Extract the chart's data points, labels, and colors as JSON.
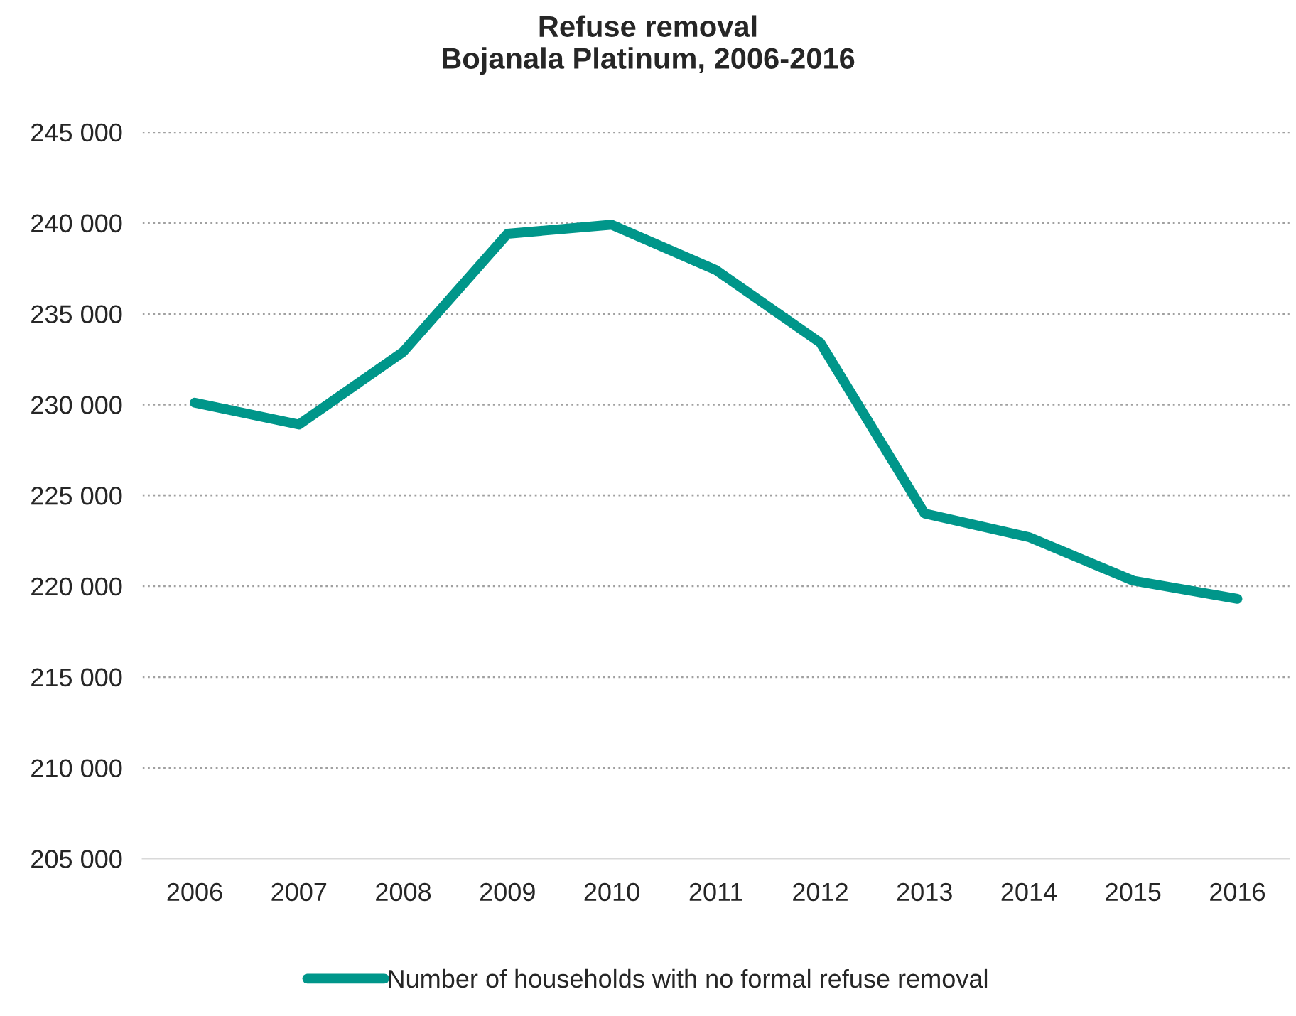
{
  "chart_data": {
    "type": "line",
    "title": "Refuse removal\nBojanala Platinum, 2006-2016",
    "categories": [
      "2006",
      "2007",
      "2008",
      "2009",
      "2010",
      "2011",
      "2012",
      "2013",
      "2014",
      "2015",
      "2016"
    ],
    "series": [
      {
        "name": "Number of households with no formal refuse removal",
        "color": "#00968a",
        "values": [
          230100,
          228900,
          232900,
          239400,
          239900,
          237400,
          233400,
          224000,
          222700,
          220300,
          219300
        ]
      }
    ],
    "ylim": [
      205000,
      245000
    ],
    "yticks": [
      {
        "value": 205000,
        "label": "205 000"
      },
      {
        "value": 210000,
        "label": "210 000"
      },
      {
        "value": 215000,
        "label": "215 000"
      },
      {
        "value": 220000,
        "label": "220 000"
      },
      {
        "value": 225000,
        "label": "225 000"
      },
      {
        "value": 230000,
        "label": "230 000"
      },
      {
        "value": 235000,
        "label": "235 000"
      },
      {
        "value": 240000,
        "label": "240 000"
      },
      {
        "value": 245000,
        "label": "245 000"
      }
    ],
    "grid": "y",
    "legend": "bottom",
    "marker": "none",
    "line_style": "solid"
  }
}
